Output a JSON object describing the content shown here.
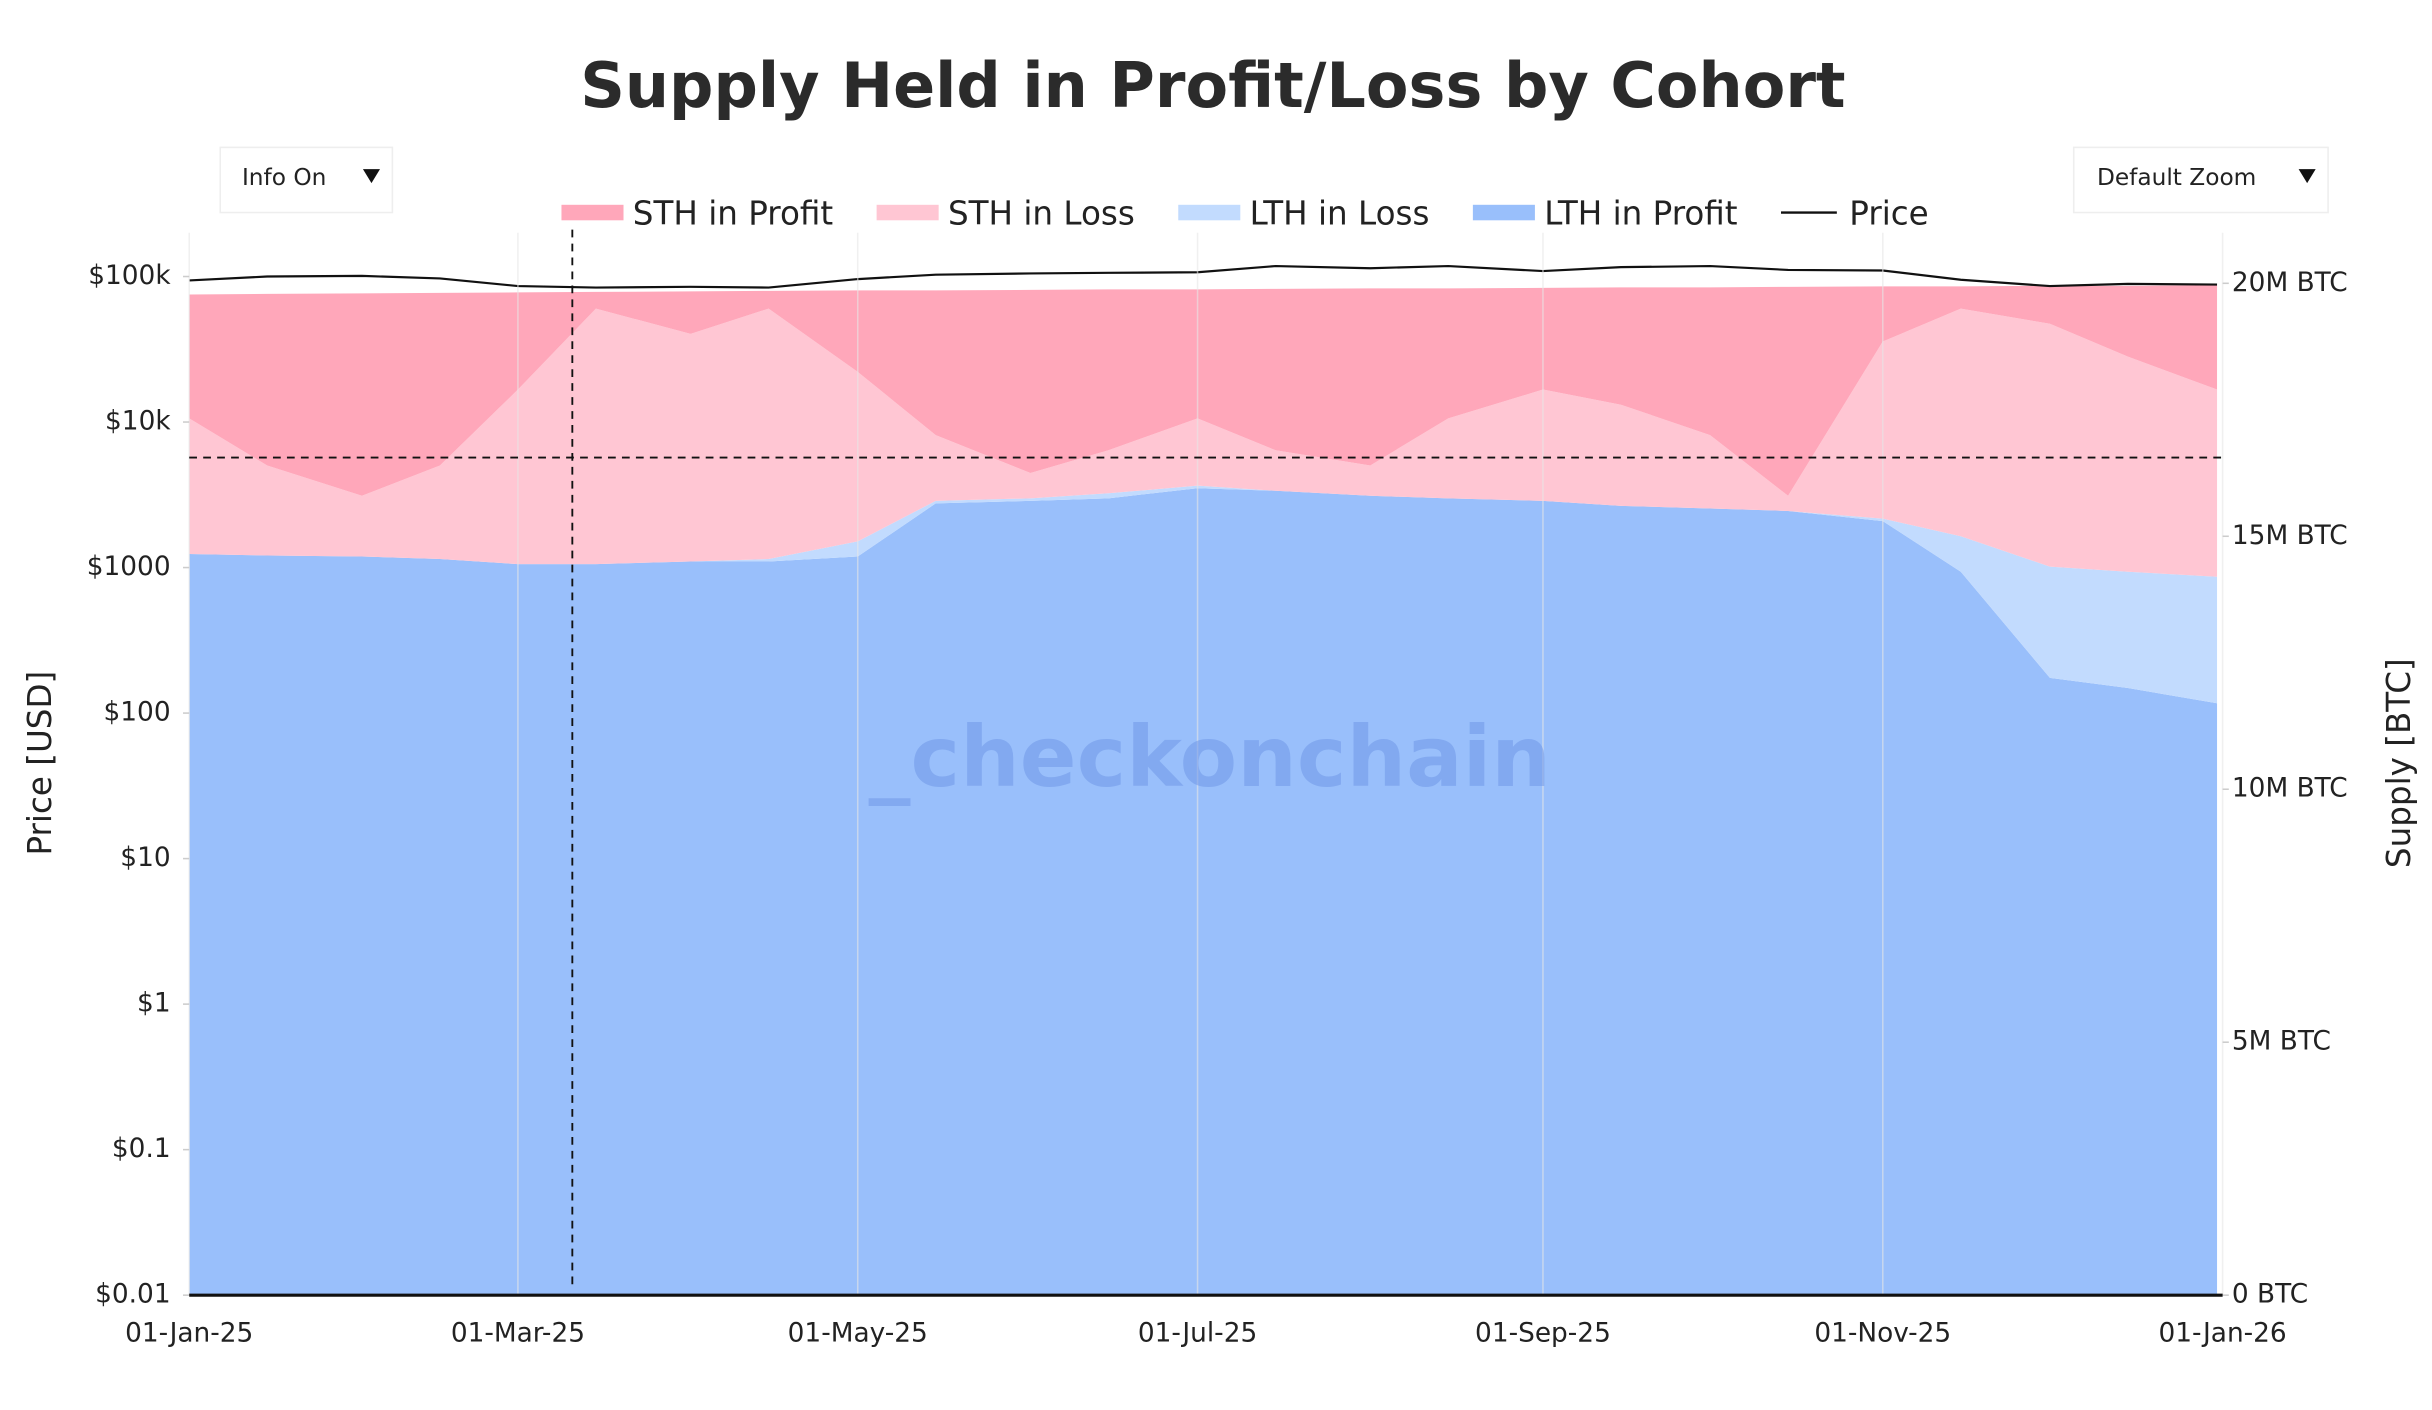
{
  "ui": {
    "info_button": "Info On",
    "zoom_button": "Default Zoom"
  },
  "chart_data": {
    "type": "stacked-area",
    "title": "Supply Held in Profit/Loss by Cohort",
    "watermark": "_checkonchain",
    "y_label": "Price [USD]",
    "y2_label": "Supply [BTC]",
    "x": [
      "2025-01-01",
      "2025-01-15",
      "2025-02-01",
      "2025-02-15",
      "2025-03-01",
      "2025-03-15",
      "2025-04-01",
      "2025-04-15",
      "2025-05-01",
      "2025-05-15",
      "2025-06-01",
      "2025-06-15",
      "2025-07-01",
      "2025-07-15",
      "2025-08-01",
      "2025-08-15",
      "2025-09-01",
      "2025-09-15",
      "2025-10-01",
      "2025-10-15",
      "2025-11-01",
      "2025-11-15",
      "2025-12-01",
      "2025-12-15",
      "2025-12-31"
    ],
    "xlim": [
      "2025-01-01",
      "2026-01-01"
    ],
    "xticks": [
      {
        "value": "2025-01-01",
        "label": "01-Jan-25"
      },
      {
        "value": "2025-03-01",
        "label": "01-Mar-25"
      },
      {
        "value": "2025-05-01",
        "label": "01-May-25"
      },
      {
        "value": "2025-07-01",
        "label": "01-Jul-25"
      },
      {
        "value": "2025-09-01",
        "label": "01-Sep-25"
      },
      {
        "value": "2025-11-01",
        "label": "01-Nov-25"
      },
      {
        "value": "2026-01-01",
        "label": "01-Jan-26"
      }
    ],
    "ylim": [
      0.01,
      200000
    ],
    "log_y": true,
    "yticks": [
      {
        "value": 0.01,
        "label": "$0.01"
      },
      {
        "value": 0.1,
        "label": "$0.1"
      },
      {
        "value": 1,
        "label": "$1"
      },
      {
        "value": 10,
        "label": "$10"
      },
      {
        "value": 100,
        "label": "$100"
      },
      {
        "value": 1000,
        "label": "$1000"
      },
      {
        "value": 10000,
        "label": "$10k"
      },
      {
        "value": 100000,
        "label": "$100k"
      }
    ],
    "y2lim": [
      0,
      21000000
    ],
    "y2ticks": [
      {
        "value": 0,
        "label": "0 BTC"
      },
      {
        "value": 5000000,
        "label": "5M BTC"
      },
      {
        "value": 10000000,
        "label": "10M BTC"
      },
      {
        "value": 15000000,
        "label": "15M BTC"
      },
      {
        "value": 20000000,
        "label": "20M BTC"
      }
    ],
    "grid": true,
    "legend_position": "top",
    "series": [
      {
        "name": "STH in Profit",
        "color": "#ffa7ba",
        "axis": "y2",
        "stack_order": 4,
        "values": [
          2450000,
          3390000,
          4000000,
          3410000,
          1920000,
          330000,
          840000,
          350000,
          1610000,
          2860000,
          3620000,
          3180000,
          2550000,
          3190000,
          3500000,
          2570000,
          2010000,
          2320000,
          2920000,
          4130000,
          1090000,
          440000,
          750000,
          1400000,
          2060000
        ]
      },
      {
        "name": "STH in Loss",
        "color": "#ffc6d3",
        "axis": "y2",
        "stack_order": 3,
        "values": [
          2680000,
          1780000,
          1200000,
          1850000,
          3450000,
          5050000,
          4500000,
          4950000,
          3350000,
          1300000,
          500000,
          850000,
          1330000,
          800000,
          600000,
          1580000,
          2200000,
          2000000,
          1450000,
          300000,
          3500000,
          4500000,
          4800000,
          4250000,
          3700000
        ]
      },
      {
        "name": "LTH in Loss",
        "color": "#c2dbfe",
        "axis": "y2",
        "stack_order": 2,
        "values": [
          0,
          0,
          0,
          0,
          0,
          0,
          0,
          50000,
          300000,
          50000,
          50000,
          100000,
          50000,
          0,
          0,
          0,
          0,
          0,
          0,
          0,
          50000,
          700000,
          2200000,
          2300000,
          2500000
        ]
      },
      {
        "name": "LTH in Profit",
        "color": "#99bffb",
        "axis": "y2",
        "stack_order": 1,
        "values": [
          14650000,
          14620000,
          14600000,
          14550000,
          14450000,
          14450000,
          14500000,
          14500000,
          14600000,
          15650000,
          15700000,
          15750000,
          15950000,
          15900000,
          15800000,
          15750000,
          15700000,
          15600000,
          15550000,
          15500000,
          15300000,
          14300000,
          12200000,
          12000000,
          11700000
        ]
      },
      {
        "name": "Price",
        "color": "#111111",
        "axis": "y",
        "kind": "line",
        "values": [
          94000,
          100000,
          101000,
          97000,
          86000,
          84000,
          85000,
          84000,
          96000,
          103000,
          105000,
          106000,
          107000,
          118000,
          114000,
          118000,
          109000,
          116000,
          118000,
          111000,
          110000,
          95000,
          86000,
          89000,
          88000
        ]
      }
    ]
  }
}
